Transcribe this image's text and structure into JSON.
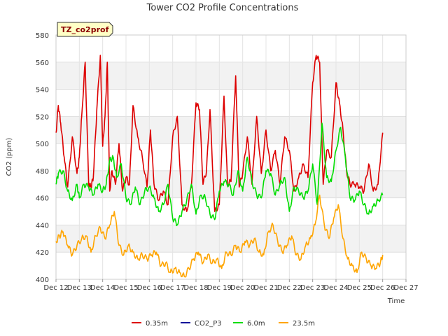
{
  "chart_data": {
    "type": "line",
    "title": "Tower CO2 Profile Concentrations",
    "badge": "TZ_co2prof",
    "xlabel": "Time",
    "ylabel": "CO2 (ppm)",
    "ylim": [
      400,
      580
    ],
    "yticks": [
      400,
      420,
      440,
      460,
      480,
      500,
      520,
      540,
      560,
      580
    ],
    "xlim": [
      12,
      27
    ],
    "xticks": [
      {
        "v": 12,
        "label": "Dec 12"
      },
      {
        "v": 13,
        "label": "Dec 13"
      },
      {
        "v": 14,
        "label": "Dec 14"
      },
      {
        "v": 15,
        "label": "Dec 15"
      },
      {
        "v": 16,
        "label": "Dec 16"
      },
      {
        "v": 17,
        "label": "Dec 17"
      },
      {
        "v": 18,
        "label": "Dec 18"
      },
      {
        "v": 19,
        "label": "Dec 19"
      },
      {
        "v": 20,
        "label": "Dec 20"
      },
      {
        "v": 21,
        "label": "Dec 21"
      },
      {
        "v": 22,
        "label": "Dec 22"
      },
      {
        "v": 23,
        "label": "Dec 23"
      },
      {
        "v": 24,
        "label": "Dec 24"
      },
      {
        "v": 25,
        "label": "Dec 25"
      },
      {
        "v": 26,
        "label": "Dec 26"
      },
      {
        "v": 27,
        "label": "Dec 27"
      }
    ],
    "grid": true,
    "legend_position": "bottom",
    "series": [
      {
        "name": "0.35m",
        "color": "#dd0000",
        "x": [
          12.0,
          12.1,
          12.2,
          12.35,
          12.5,
          12.7,
          12.9,
          13.0,
          13.1,
          13.25,
          13.4,
          13.5,
          13.6,
          13.75,
          13.9,
          14.0,
          14.1,
          14.2,
          14.3,
          14.4,
          14.55,
          14.7,
          14.85,
          15.0,
          15.15,
          15.3,
          15.5,
          15.7,
          15.9,
          16.05,
          16.2,
          16.4,
          16.6,
          16.8,
          17.0,
          17.2,
          17.4,
          17.6,
          17.8,
          18.0,
          18.15,
          18.3,
          18.45,
          18.6,
          18.8,
          19.0,
          19.2,
          19.35,
          19.5,
          19.7,
          19.85,
          20.0,
          20.2,
          20.4,
          20.6,
          20.8,
          21.0,
          21.2,
          21.4,
          21.6,
          21.8,
          22.0,
          22.2,
          22.4,
          22.6,
          22.8,
          23.0,
          23.15,
          23.3,
          23.45,
          23.6,
          23.8,
          24.0,
          24.15,
          24.3,
          24.45,
          24.6,
          24.8,
          25.0,
          25.2,
          25.4,
          25.6,
          25.8,
          26.0
        ],
        "y": [
          508,
          528,
          515,
          490,
          468,
          505,
          478,
          490,
          520,
          560,
          470,
          468,
          475,
          525,
          565,
          498,
          520,
          560,
          465,
          480,
          470,
          500,
          465,
          475,
          470,
          528,
          505,
          490,
          468,
          510,
          470,
          458,
          465,
          455,
          505,
          520,
          455,
          450,
          468,
          530,
          525,
          470,
          480,
          525,
          450,
          455,
          535,
          470,
          472,
          550,
          468,
          478,
          505,
          470,
          520,
          478,
          510,
          480,
          495,
          470,
          505,
          495,
          465,
          475,
          485,
          475,
          545,
          565,
          560,
          470,
          495,
          490,
          545,
          530,
          510,
          480,
          470,
          470,
          468,
          465,
          485,
          465,
          470,
          508
        ]
      },
      {
        "name": "CO2_P3",
        "color": "#000099",
        "x": [],
        "y": []
      },
      {
        "name": "6.0m",
        "color": "#00dd00",
        "x": [
          12.0,
          12.1,
          12.3,
          12.5,
          12.7,
          12.9,
          13.0,
          13.2,
          13.4,
          13.6,
          13.8,
          14.0,
          14.15,
          14.3,
          14.45,
          14.6,
          14.8,
          15.0,
          15.2,
          15.4,
          15.6,
          15.8,
          16.0,
          16.2,
          16.4,
          16.6,
          16.8,
          17.0,
          17.2,
          17.4,
          17.6,
          17.8,
          18.0,
          18.2,
          18.4,
          18.6,
          18.8,
          19.0,
          19.2,
          19.4,
          19.6,
          19.8,
          20.0,
          20.2,
          20.4,
          20.6,
          20.8,
          21.0,
          21.2,
          21.4,
          21.6,
          21.8,
          22.0,
          22.2,
          22.4,
          22.6,
          22.8,
          23.0,
          23.2,
          23.4,
          23.6,
          23.8,
          24.0,
          24.2,
          24.4,
          24.6,
          24.8,
          25.0,
          25.2,
          25.4,
          25.6,
          25.8,
          26.0
        ],
        "y": [
          470,
          478,
          480,
          465,
          458,
          470,
          460,
          470,
          468,
          462,
          470,
          465,
          470,
          488,
          490,
          475,
          485,
          460,
          455,
          468,
          455,
          465,
          468,
          460,
          450,
          455,
          470,
          445,
          440,
          450,
          458,
          470,
          448,
          462,
          460,
          448,
          444,
          465,
          472,
          470,
          462,
          480,
          465,
          490,
          472,
          462,
          460,
          480,
          478,
          462,
          470,
          475,
          450,
          468,
          465,
          460,
          465,
          485,
          455,
          515,
          475,
          472,
          495,
          512,
          490,
          460,
          458,
          465,
          455,
          448,
          454,
          458,
          462
        ]
      },
      {
        "name": "23.5m",
        "color": "#ffa500",
        "x": [
          12.0,
          12.15,
          12.3,
          12.5,
          12.7,
          12.9,
          13.1,
          13.3,
          13.5,
          13.7,
          13.9,
          14.1,
          14.3,
          14.5,
          14.7,
          14.9,
          15.1,
          15.3,
          15.5,
          15.7,
          15.9,
          16.1,
          16.3,
          16.5,
          16.7,
          16.9,
          17.1,
          17.3,
          17.5,
          17.7,
          17.9,
          18.1,
          18.3,
          18.5,
          18.7,
          18.9,
          19.1,
          19.3,
          19.5,
          19.7,
          19.9,
          20.1,
          20.3,
          20.5,
          20.7,
          20.9,
          21.1,
          21.3,
          21.5,
          21.7,
          21.9,
          22.1,
          22.3,
          22.5,
          22.7,
          22.9,
          23.1,
          23.3,
          23.5,
          23.7,
          23.9,
          24.1,
          24.3,
          24.5,
          24.7,
          24.9,
          25.1,
          25.3,
          25.5,
          25.7,
          25.9,
          26.0
        ],
        "y": [
          428,
          432,
          435,
          425,
          418,
          425,
          430,
          432,
          420,
          432,
          438,
          430,
          440,
          450,
          425,
          418,
          425,
          420,
          415,
          418,
          415,
          418,
          420,
          410,
          412,
          405,
          408,
          405,
          402,
          408,
          415,
          420,
          412,
          418,
          412,
          415,
          408,
          420,
          418,
          425,
          420,
          428,
          425,
          430,
          420,
          418,
          435,
          440,
          428,
          420,
          425,
          432,
          418,
          415,
          425,
          430,
          440,
          462,
          440,
          430,
          445,
          455,
          430,
          415,
          410,
          405,
          420,
          415,
          410,
          408,
          412,
          418
        ]
      }
    ]
  }
}
